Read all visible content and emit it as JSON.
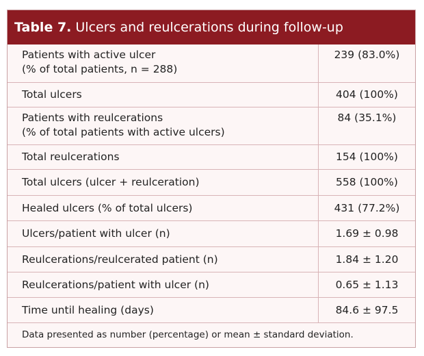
{
  "header": {
    "label": "Table 7.",
    "title": "Ulcers and reulcerations during follow-up"
  },
  "table": {
    "rows": [
      {
        "label": [
          "Patients with active ulcer",
          "(% of total patients, n = 288)"
        ],
        "value": "239 (83.0%)"
      },
      {
        "label": [
          "Total ulcers"
        ],
        "value": "404 (100%)"
      },
      {
        "label": [
          "Patients with reulcerations",
          "(% of total patients with active ulcers)"
        ],
        "value": "84 (35.1%)"
      },
      {
        "label": [
          "Total reulcerations"
        ],
        "value": "154 (100%)"
      },
      {
        "label": [
          "Total ulcers (ulcer + reulceration)"
        ],
        "value": "558 (100%)"
      },
      {
        "label": [
          "Healed ulcers (% of total ulcers)"
        ],
        "value": "431 (77.2%)"
      },
      {
        "label": [
          "Ulcers/patient with ulcer (n)"
        ],
        "value": "1.69 ± 0.98"
      },
      {
        "label": [
          "Reulcerations/reulcerated patient (n)"
        ],
        "value": "1.84 ± 1.20"
      },
      {
        "label": [
          "Reulcerations/patient with ulcer (n)"
        ],
        "value": "0.65 ± 1.13"
      },
      {
        "label": [
          "Time until healing (days)"
        ],
        "value": "84.6 ± 97.5"
      }
    ]
  },
  "footnote": "Data presented as number (percentage) or mean ± standard deviation."
}
